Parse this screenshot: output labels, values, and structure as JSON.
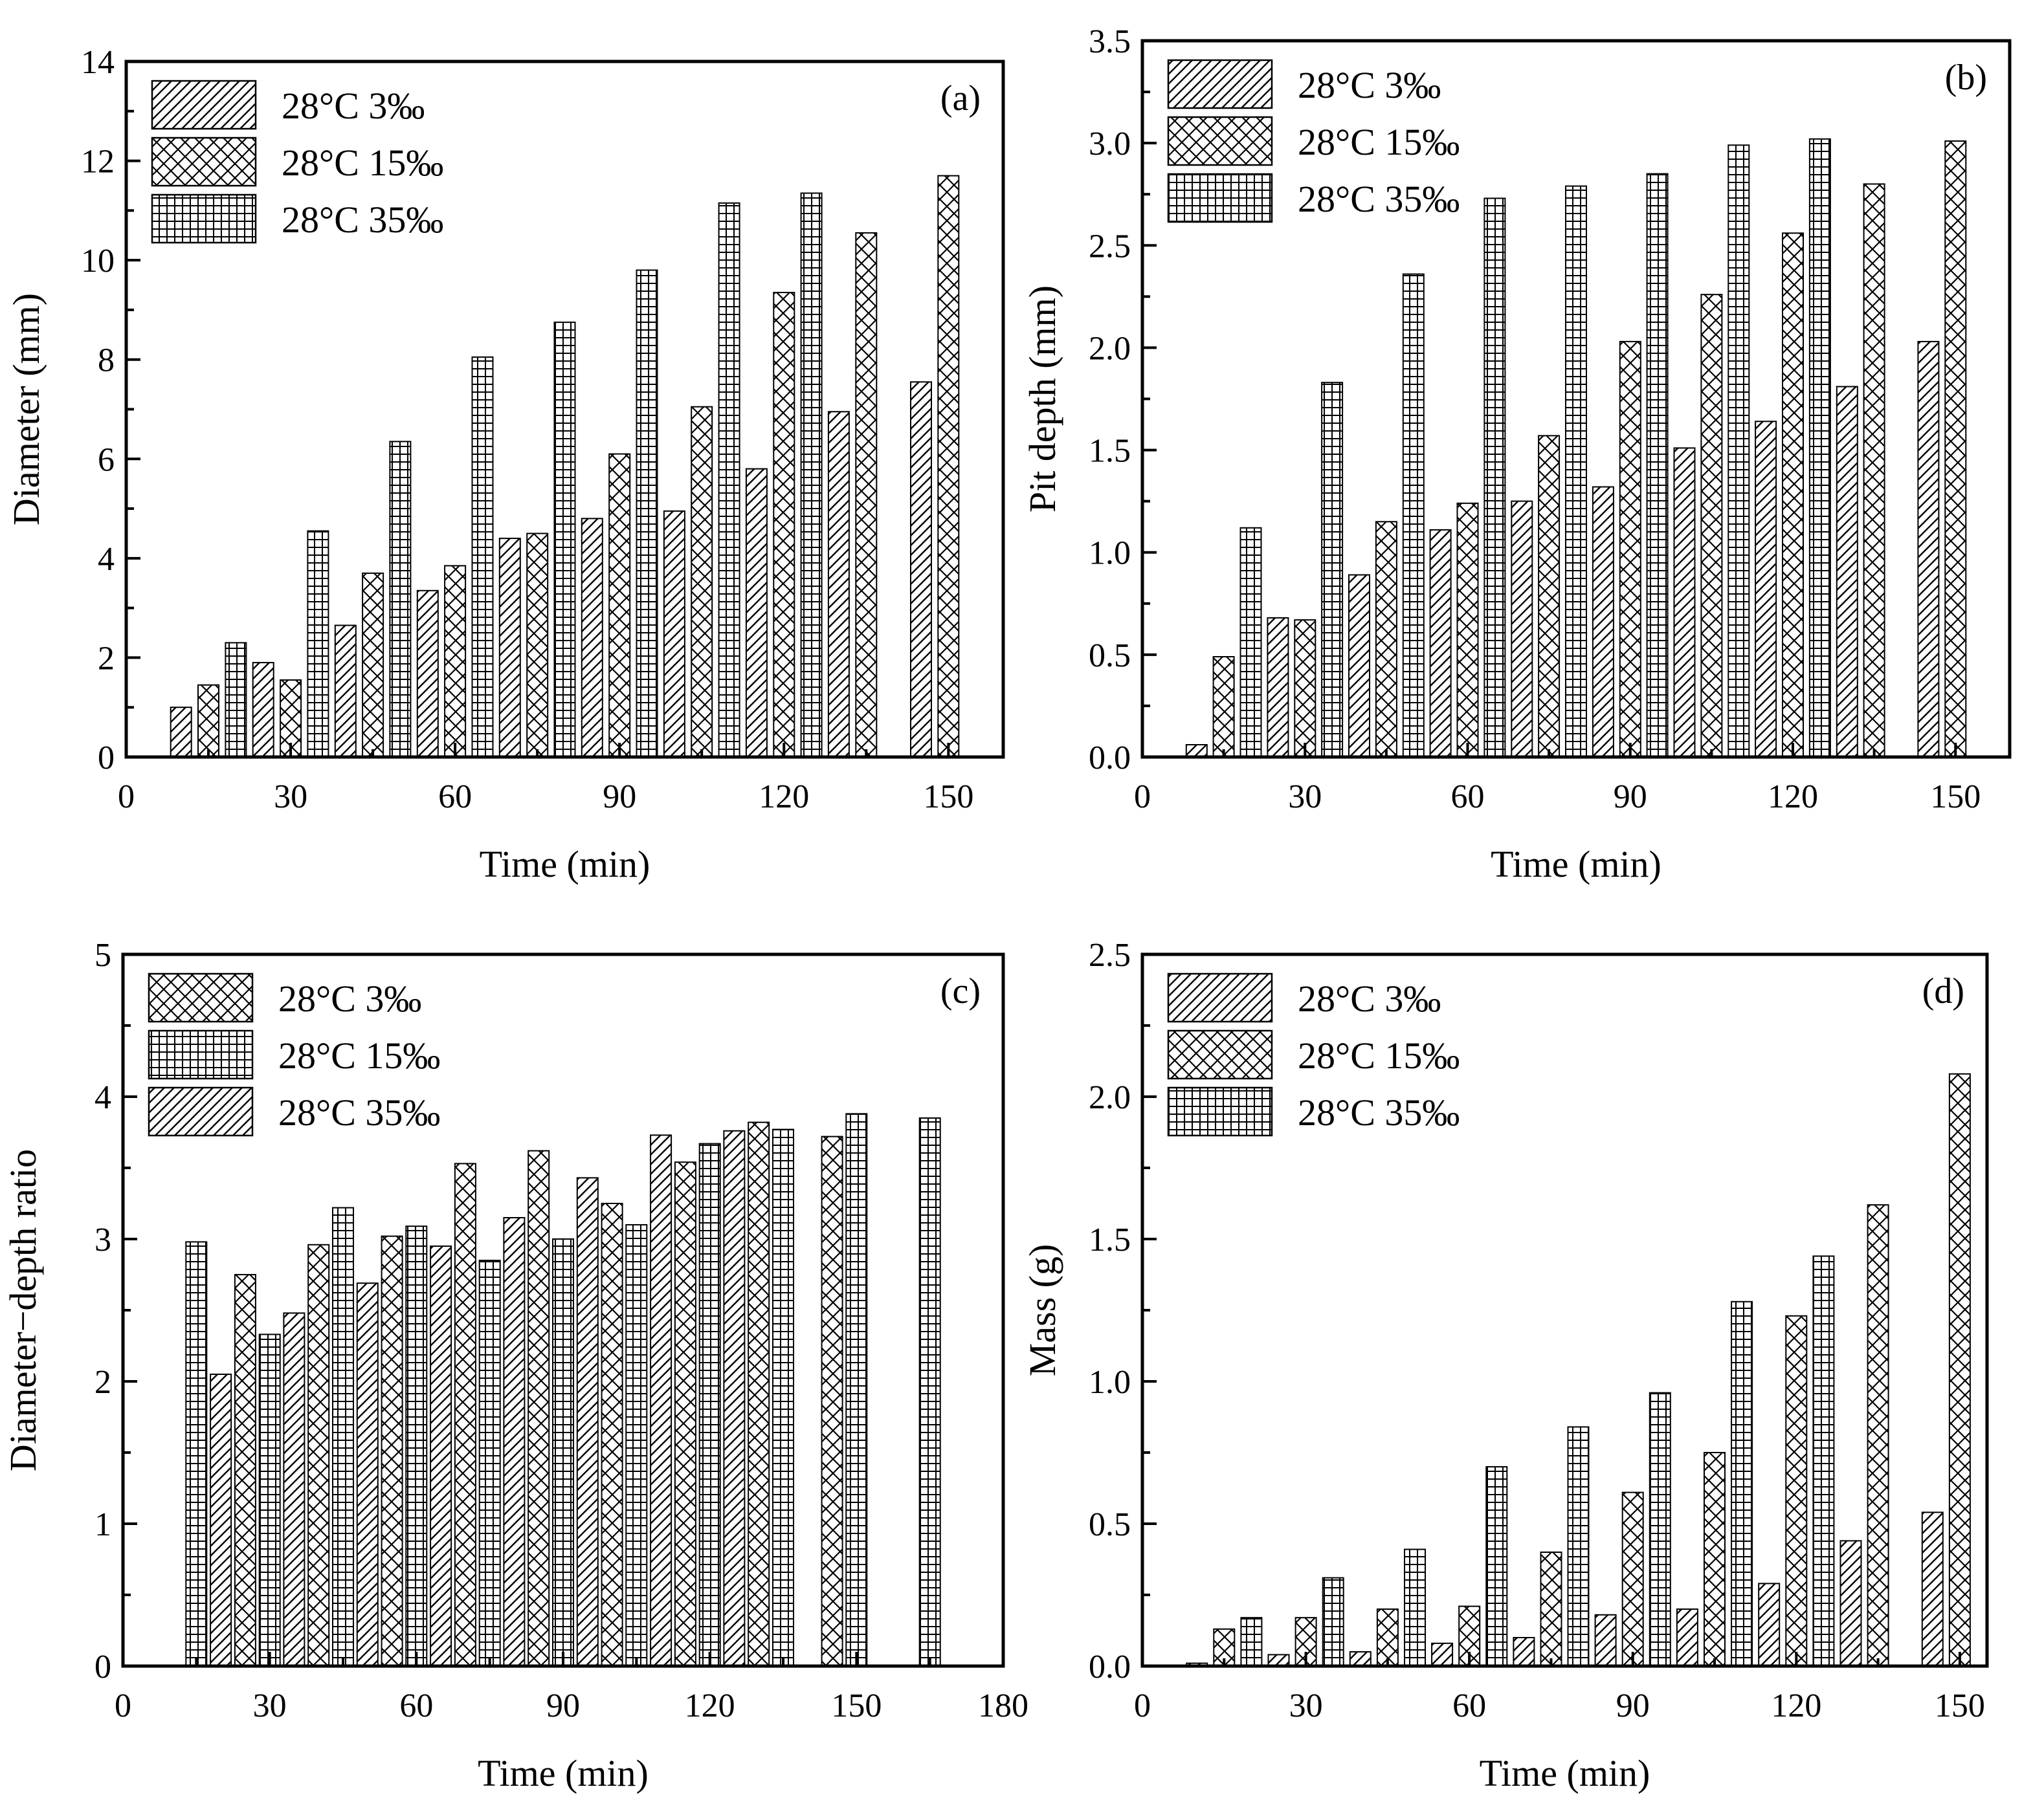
{
  "colors": {
    "ink": "#000000",
    "paper": "#ffffff"
  },
  "chart_data": [
    {
      "type": "bar",
      "panel_label": "(a)",
      "xlabel": "Time (min)",
      "ylabel": "Diameter (mm)",
      "xlim": [
        0,
        160
      ],
      "ylim": [
        0,
        14
      ],
      "xticks": [
        "0",
        "30",
        "60",
        "90",
        "120",
        "150"
      ],
      "yticks": [
        "0",
        "2",
        "4",
        "6",
        "8",
        "10",
        "12",
        "14"
      ],
      "legend_position": "top-left",
      "series": [
        {
          "name": "28°C 3‰",
          "pattern": "diag",
          "x": [
            10,
            25,
            40,
            55,
            70,
            85,
            100,
            115,
            130,
            145
          ],
          "values": [
            1.0,
            1.9,
            2.65,
            3.35,
            4.4,
            4.8,
            4.95,
            5.8,
            6.95,
            7.55
          ]
        },
        {
          "name": "28°C 15‰",
          "pattern": "cross",
          "x": [
            15,
            30,
            45,
            60,
            75,
            90,
            105,
            120,
            135,
            150
          ],
          "values": [
            1.45,
            1.55,
            3.7,
            3.85,
            4.5,
            6.1,
            7.05,
            9.35,
            10.55,
            11.7
          ]
        },
        {
          "name": "28°C 35‰",
          "pattern": "grid",
          "x": [
            20,
            35,
            50,
            65,
            80,
            95,
            110,
            125
          ],
          "values": [
            2.3,
            4.55,
            6.35,
            8.05,
            8.75,
            9.8,
            11.15,
            11.35
          ]
        }
      ]
    },
    {
      "type": "bar",
      "panel_label": "(b)",
      "xlabel": "Time (min)",
      "ylabel": "Pit depth (mm)",
      "xlim": [
        0,
        160
      ],
      "ylim": [
        0,
        3.5
      ],
      "xticks": [
        "0",
        "30",
        "60",
        "90",
        "120",
        "150"
      ],
      "yticks": [
        "0.0",
        "0.5",
        "1.0",
        "1.5",
        "2.0",
        "2.5",
        "3.0",
        "3.5"
      ],
      "legend_position": "top-left",
      "series": [
        {
          "name": "28°C 3‰",
          "pattern": "diag",
          "x": [
            10,
            25,
            40,
            55,
            70,
            85,
            100,
            115,
            130,
            145
          ],
          "values": [
            0.06,
            0.68,
            0.89,
            1.11,
            1.25,
            1.32,
            1.51,
            1.64,
            1.81,
            2.03
          ]
        },
        {
          "name": "28°C 15‰",
          "pattern": "cross",
          "x": [
            15,
            30,
            45,
            60,
            75,
            90,
            105,
            120,
            135,
            150
          ],
          "values": [
            0.49,
            0.67,
            1.15,
            1.24,
            1.57,
            2.03,
            2.26,
            2.56,
            2.8,
            3.01
          ]
        },
        {
          "name": "28°C 35‰",
          "pattern": "grid",
          "x": [
            20,
            35,
            50,
            65,
            80,
            95,
            110,
            125
          ],
          "values": [
            1.12,
            1.83,
            2.36,
            2.73,
            2.79,
            2.85,
            2.99,
            3.02
          ]
        }
      ]
    },
    {
      "type": "bar",
      "panel_label": "(c)",
      "xlabel": "Time (min)",
      "ylabel": "Diameter−depth ratio",
      "xlim": [
        0,
        180
      ],
      "ylim": [
        0,
        5
      ],
      "xticks": [
        "0",
        "30",
        "60",
        "90",
        "120",
        "150",
        "180"
      ],
      "yticks": [
        "0",
        "1",
        "2",
        "3",
        "4",
        "5"
      ],
      "legend_position": "top-left",
      "series": [
        {
          "name": "28°C  3‰",
          "pattern": "cross",
          "x": [
            25,
            40,
            55,
            70,
            85,
            100,
            115,
            130,
            145
          ],
          "values": [
            2.75,
            2.96,
            3.02,
            3.53,
            3.62,
            3.25,
            3.54,
            3.82,
            3.72
          ]
        },
        {
          "name": "28°C 15‰",
          "pattern": "grid",
          "x": [
            15,
            30,
            45,
            60,
            75,
            90,
            105,
            120,
            135,
            150,
            165
          ],
          "values": [
            2.98,
            2.33,
            3.22,
            3.09,
            2.85,
            3.0,
            3.1,
            3.67,
            3.77,
            3.88,
            3.85
          ]
        },
        {
          "name": "28°C 35‰",
          "pattern": "diag",
          "x": [
            20,
            35,
            50,
            65,
            80,
            95,
            110,
            125
          ],
          "values": [
            2.05,
            2.48,
            2.69,
            2.95,
            3.15,
            3.43,
            3.73,
            3.76
          ]
        }
      ]
    },
    {
      "type": "bar",
      "panel_label": "(d)",
      "xlabel": "Time (min)",
      "ylabel": "Mass (g)",
      "xlim": [
        0,
        155
      ],
      "ylim": [
        0,
        2.5
      ],
      "xticks": [
        "0",
        "30",
        "60",
        "90",
        "120",
        "150"
      ],
      "yticks": [
        "0.0",
        "0.5",
        "1.0",
        "1.5",
        "2.0",
        "2.5"
      ],
      "legend_position": "top-left",
      "series": [
        {
          "name": "28°C 3‰",
          "pattern": "diag",
          "x": [
            10,
            25,
            40,
            55,
            70,
            85,
            100,
            115,
            130,
            145
          ],
          "values": [
            0.01,
            0.04,
            0.05,
            0.08,
            0.1,
            0.18,
            0.2,
            0.29,
            0.44,
            0.54
          ]
        },
        {
          "name": "28°C  15‰",
          "pattern": "cross",
          "x": [
            15,
            30,
            45,
            60,
            75,
            90,
            105,
            120,
            135,
            150
          ],
          "values": [
            0.13,
            0.17,
            0.2,
            0.21,
            0.4,
            0.61,
            0.75,
            1.23,
            1.62,
            2.08
          ]
        },
        {
          "name": "28°C 35‰",
          "pattern": "grid",
          "x": [
            20,
            35,
            50,
            65,
            80,
            95,
            110,
            125
          ],
          "values": [
            0.17,
            0.31,
            0.41,
            0.7,
            0.84,
            0.96,
            1.28,
            1.44
          ]
        }
      ]
    }
  ]
}
